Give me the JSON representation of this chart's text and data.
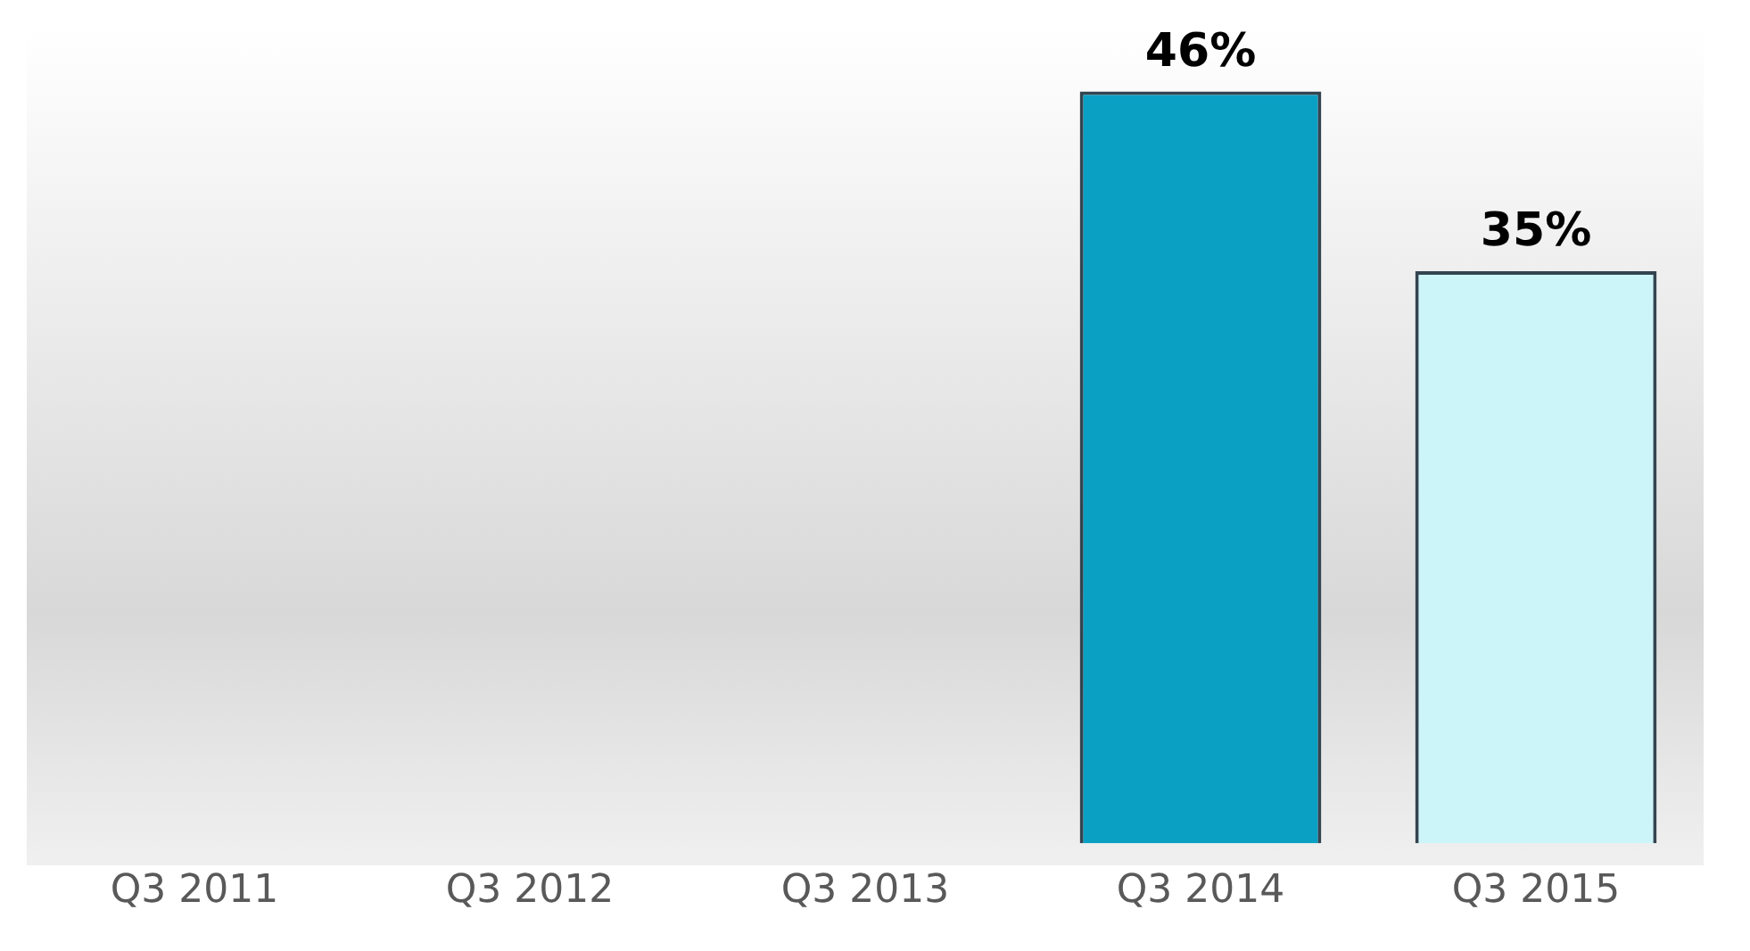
{
  "chart_data": {
    "type": "bar",
    "categories": [
      "Q3 2011",
      "Q3 2012",
      "Q3 2013",
      "Q3 2014",
      "Q3 2015"
    ],
    "values": [
      null,
      null,
      null,
      46,
      35
    ],
    "colors": [
      "#0aa0c4",
      "#0aa0c4",
      "#0aa0c4",
      "#0aa0c4",
      "#ccf5fa"
    ],
    "value_labels": [
      null,
      null,
      null,
      "46%",
      "35%"
    ],
    "grid": false,
    "legend": false
  }
}
